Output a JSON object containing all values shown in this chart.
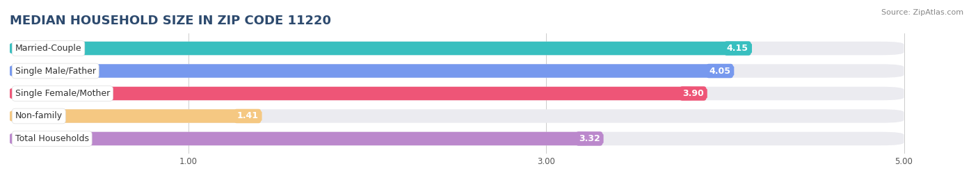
{
  "title": "MEDIAN HOUSEHOLD SIZE IN ZIP CODE 11220",
  "source": "Source: ZipAtlas.com",
  "categories": [
    "Married-Couple",
    "Single Male/Father",
    "Single Female/Mother",
    "Non-family",
    "Total Households"
  ],
  "values": [
    4.15,
    4.05,
    3.9,
    1.41,
    3.32
  ],
  "bar_colors": [
    "#38bfbf",
    "#7799ee",
    "#ee5577",
    "#f5c882",
    "#bb88cc"
  ],
  "bar_bg_color": "#ebebf0",
  "xlim": [
    0,
    5.25
  ],
  "xmin": 0,
  "xmax": 5.0,
  "xticks": [
    1.0,
    3.0,
    5.0
  ],
  "title_fontsize": 13,
  "title_color": "#2d4a6e",
  "label_fontsize": 9,
  "value_fontsize": 9,
  "source_fontsize": 8
}
